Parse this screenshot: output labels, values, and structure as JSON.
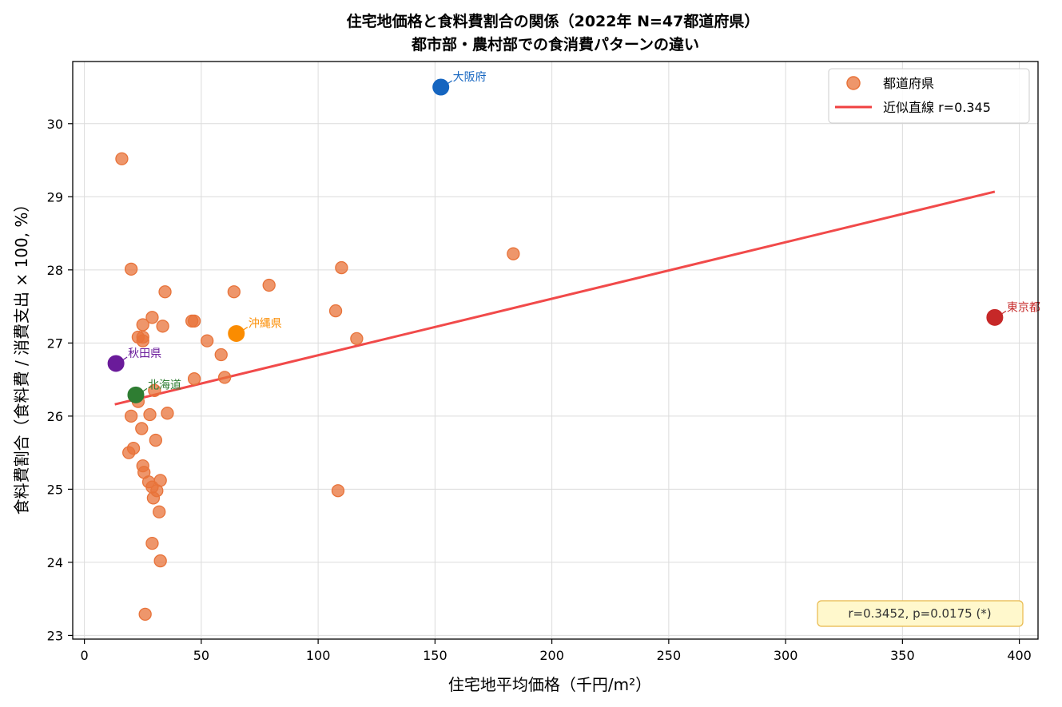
{
  "chart_data": {
    "type": "scatter",
    "title": "住宅地価格と食料費割合の関係（2022年 N=47都道府県）",
    "subtitle": "都市部・農村部での食消費パターンの違い",
    "xlabel": "住宅地平均価格（千円/m²）",
    "ylabel": "食料費割合（食料費 / 消費支出 × 100, %）",
    "xlim": [
      -5,
      408
    ],
    "ylim": [
      22.95,
      30.85
    ],
    "xticks": [
      0,
      50,
      100,
      150,
      200,
      250,
      300,
      350,
      400
    ],
    "yticks": [
      23,
      24,
      25,
      26,
      27,
      28,
      29,
      30
    ],
    "grid": true,
    "legend_position": "top-right",
    "series": [
      {
        "name": "都道府県",
        "color": "#E8733A",
        "points": [
          [
            16,
            29.52
          ],
          [
            20,
            28.01
          ],
          [
            34.5,
            27.7
          ],
          [
            64,
            27.7
          ],
          [
            79,
            27.79
          ],
          [
            110,
            28.03
          ],
          [
            183.5,
            28.22
          ],
          [
            107.5,
            27.44
          ],
          [
            29,
            27.35
          ],
          [
            25,
            27.25
          ],
          [
            33.5,
            27.23
          ],
          [
            46,
            27.3
          ],
          [
            47,
            27.3
          ],
          [
            23,
            27.08
          ],
          [
            25,
            27.08
          ],
          [
            25,
            27.03
          ],
          [
            52.5,
            27.03
          ],
          [
            116.5,
            27.06
          ],
          [
            58.5,
            26.84
          ],
          [
            47,
            26.51
          ],
          [
            60,
            26.53
          ],
          [
            30,
            26.35
          ],
          [
            23,
            26.2
          ],
          [
            20,
            26.0
          ],
          [
            28,
            26.02
          ],
          [
            35.5,
            26.04
          ],
          [
            24.5,
            25.83
          ],
          [
            30.5,
            25.67
          ],
          [
            21,
            25.56
          ],
          [
            19,
            25.5
          ],
          [
            25,
            25.32
          ],
          [
            25.5,
            25.23
          ],
          [
            27.5,
            25.1
          ],
          [
            32.5,
            25.12
          ],
          [
            29,
            25.03
          ],
          [
            31,
            24.98
          ],
          [
            29.5,
            24.88
          ],
          [
            108.5,
            24.98
          ],
          [
            32,
            24.69
          ],
          [
            29,
            24.26
          ],
          [
            32.5,
            24.02
          ],
          [
            26,
            23.29
          ]
        ]
      }
    ],
    "highlights": [
      {
        "label": "大阪府",
        "x": 152.5,
        "y": 30.5,
        "color": "#1565C0"
      },
      {
        "label": "東京都",
        "x": 389.5,
        "y": 27.35,
        "color": "#C62828"
      },
      {
        "label": "沖縄県",
        "x": 65,
        "y": 27.13,
        "color": "#FB8C00"
      },
      {
        "label": "秋田県",
        "x": 13.5,
        "y": 26.72,
        "color": "#6A1B9A"
      },
      {
        "label": "北海道",
        "x": 22,
        "y": 26.29,
        "color": "#2E7D32"
      }
    ],
    "fit_line": {
      "name": "近似直線 r=0.345",
      "color": "#F04040",
      "x": [
        13,
        389.5
      ],
      "y": [
        26.16,
        29.07
      ]
    },
    "stats_box": "r=0.3452,  p=0.0175  (*)"
  }
}
